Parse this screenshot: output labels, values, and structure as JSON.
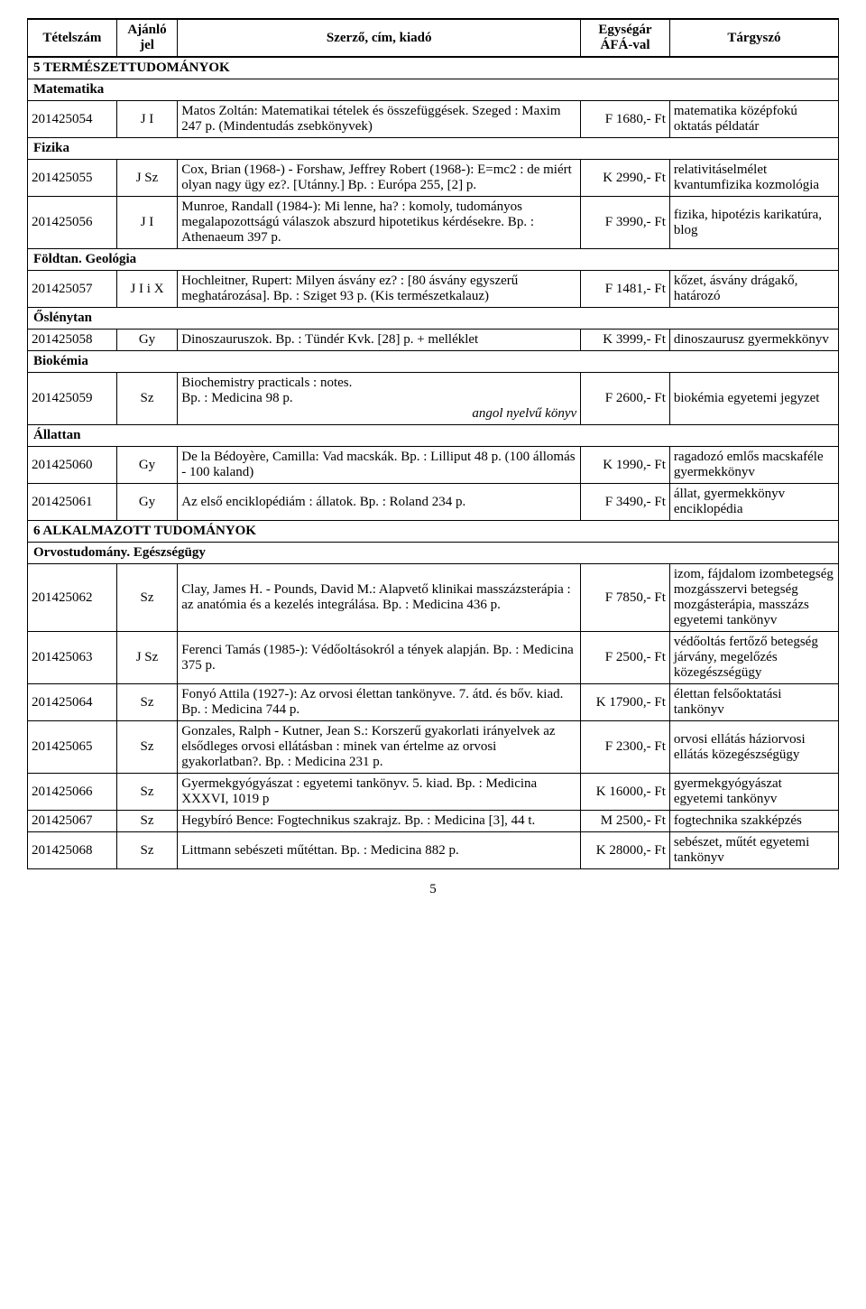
{
  "page_number": "5",
  "headers": {
    "id": "Tételszám",
    "sign": "Ajánló jel",
    "desc": "Szerző, cím, kiadó",
    "price": "Egységár ÁFÁ-val",
    "tags": "Tárgyszó"
  },
  "sections": [
    {
      "type": "section",
      "label": "5 TERMÉSZETTUDOMÁNYOK"
    },
    {
      "type": "section",
      "label": "Matematika"
    },
    {
      "type": "row",
      "id": "201425054",
      "sign": "J I",
      "desc": "Matos Zoltán: Matematikai tételek és összefüggések. Szeged : Maxim 247 p. (Mindentudás zsebkönyvek)",
      "price": "F 1680,- Ft",
      "tags": "matematika középfokú oktatás példatár"
    },
    {
      "type": "section",
      "label": "Fizika"
    },
    {
      "type": "row",
      "id": "201425055",
      "sign": "J Sz",
      "desc": "Cox, Brian (1968-) - Forshaw, Jeffrey Robert (1968-): E=mc2 : de miért olyan nagy ügy ez?. [Utánny.] Bp. : Európa 255, [2] p.",
      "price": "K 2990,- Ft",
      "tags": "relativitáselmélet kvantumfizika kozmológia"
    },
    {
      "type": "row",
      "id": "201425056",
      "sign": "J I",
      "desc": "Munroe, Randall (1984-): Mi lenne, ha? : komoly, tudományos megalapozottságú válaszok abszurd hipotetikus kérdésekre. Bp. : Athenaeum 397 p.",
      "price": "F 3990,- Ft",
      "tags": "fizika, hipotézis karikatúra, blog"
    },
    {
      "type": "section",
      "label": "Földtan. Geológia"
    },
    {
      "type": "row",
      "id": "201425057",
      "sign": "J I i X",
      "desc": "Hochleitner, Rupert: Milyen ásvány ez? : [80 ásvány egyszerű meghatározása]. Bp. : Sziget 93 p. (Kis természetkalauz)",
      "price": "F 1481,- Ft",
      "tags": "kőzet, ásvány drágakő, határozó"
    },
    {
      "type": "section",
      "label": "Őslénytan"
    },
    {
      "type": "row",
      "id": "201425058",
      "sign": "Gy",
      "desc": "Dinoszauruszok. Bp. : Tündér Kvk. [28] p. + melléklet",
      "price": "K 3999,- Ft",
      "tags": "dinoszaurusz gyermekkönyv"
    },
    {
      "type": "section",
      "label": "Biokémia"
    },
    {
      "type": "row",
      "id": "201425059",
      "sign": "Sz",
      "desc": "Biochemistry practicals : notes.\nBp. : Medicina 98 p.\n                                                                      angol nyelvű könyv",
      "price": "F 2600,- Ft",
      "tags": "biokémia egyetemi jegyzet",
      "pre": true
    },
    {
      "type": "section",
      "label": "Állattan"
    },
    {
      "type": "row",
      "id": "201425060",
      "sign": "Gy",
      "desc": "De la Bédoyère, Camilla: Vad macskák. Bp. : Lilliput 48 p. (100 állomás - 100 kaland)",
      "price": "K 1990,- Ft",
      "tags": "ragadozó emlős macskaféle gyermekkönyv"
    },
    {
      "type": "row",
      "id": "201425061",
      "sign": "Gy",
      "desc": "Az első enciklopédiám : állatok. Bp. : Roland 234 p.",
      "price": "F 3490,- Ft",
      "tags": "állat, gyermekkönyv enciklopédia"
    },
    {
      "type": "section",
      "label": "6 ALKALMAZOTT TUDOMÁNYOK"
    },
    {
      "type": "section",
      "label": "Orvostudomány. Egészségügy"
    },
    {
      "type": "row",
      "id": "201425062",
      "sign": "Sz",
      "desc": "Clay, James H. - Pounds, David M.: Alapvető klinikai masszázsterápia : az anatómia és a kezelés integrálása. Bp. : Medicina 436 p.",
      "price": "F 7850,- Ft",
      "tags": "izom, fájdalom izombetegség mozgásszervi betegség mozgásterápia, masszázs egyetemi tankönyv"
    },
    {
      "type": "row",
      "id": "201425063",
      "sign": "J Sz",
      "desc": "Ferenci Tamás (1985-): Védőoltásokról a tények alapján. Bp. : Medicina 375 p.",
      "price": "F 2500,- Ft",
      "tags": "védőoltás fertőző betegség járvány, megelőzés közegészségügy"
    },
    {
      "type": "row",
      "id": "201425064",
      "sign": "Sz",
      "desc": "Fonyó Attila (1927-): Az orvosi élettan tankönyve. 7. átd. és bőv. kiad. Bp. : Medicina 744 p.",
      "price": "K 17900,- Ft",
      "tags": "élettan felsőoktatási tankönyv"
    },
    {
      "type": "row",
      "id": "201425065",
      "sign": "Sz",
      "desc": "Gonzales, Ralph - Kutner, Jean S.: Korszerű gyakorlati irányelvek az elsődleges orvosi ellátásban : minek van értelme az orvosi gyakorlatban?. Bp. : Medicina 231 p.",
      "price": "F 2300,- Ft",
      "tags": "orvosi ellátás háziorvosi ellátás közegészségügy"
    },
    {
      "type": "row",
      "id": "201425066",
      "sign": "Sz",
      "desc": "Gyermekgyógyászat : egyetemi tankönyv. 5. kiad. Bp. : Medicina XXXVI, 1019 p",
      "price": "K 16000,- Ft",
      "tags": "gyermekgyógyászat egyetemi tankönyv"
    },
    {
      "type": "row",
      "id": "201425067",
      "sign": "Sz",
      "desc": "Hegybíró Bence: Fogtechnikus szakrajz. Bp. : Medicina [3], 44 t.",
      "price": "M 2500,- Ft",
      "tags": "fogtechnika szakképzés"
    },
    {
      "type": "row",
      "id": "201425068",
      "sign": "Sz",
      "desc": "Littmann sebészeti műtéttan. Bp. : Medicina 882 p.",
      "price": "K 28000,- Ft",
      "tags": "sebészet, műtét egyetemi tankönyv"
    }
  ]
}
